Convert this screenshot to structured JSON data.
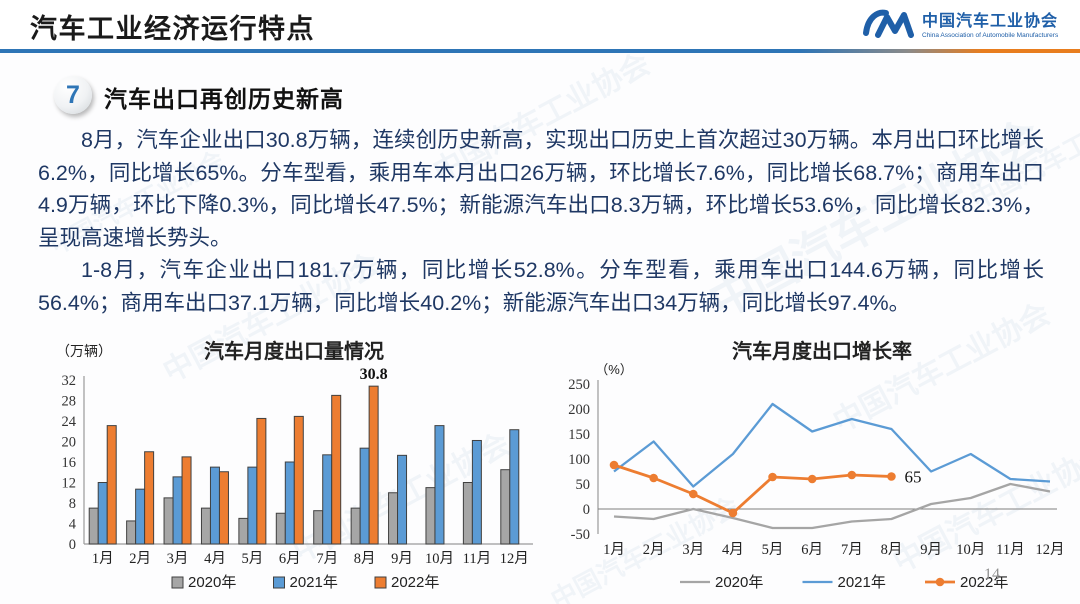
{
  "header": {
    "title": "汽车工业经济运行特点",
    "logo": {
      "org_cn": "中国汽车工业协会",
      "org_en": "China Association of Automobile Manufacturers"
    }
  },
  "section": {
    "number": "7",
    "heading": "汽车出口再创历史新高"
  },
  "paragraphs": [
    "8月，汽车企业出口30.8万辆，连续创历史新高，实现出口历史上首次超过30万辆。本月出口环比增长6.2%，同比增长65%。分车型看，乘用车本月出口26万辆，环比增长7.6%，同比增长68.7%；商用车出口4.9万辆，环比下降0.3%，同比增长47.5%；新能源汽车出口8.3万辆，环比增长53.6%，同比增长82.3%，呈现高速增长势头。",
    "1-8月，汽车企业出口181.7万辆，同比增长52.8%。分车型看，乘用车出口144.6万辆，同比增长56.4%；商用车出口37.1万辆，同比增长40.2%；新能源汽车出口34万辆，同比增长97.4%。"
  ],
  "watermark_text": "中国汽车工业协会",
  "page_number": "14",
  "colors": {
    "accent_blue": "#2E75B6",
    "body_text": "#1F3864",
    "series_2020": "#A6A6A6",
    "series_2021": "#5B9BD5",
    "series_2022": "#ED7D31",
    "bar_outline": "#404040",
    "axis": "#9a9a9a"
  },
  "chart_data": [
    {
      "type": "bar",
      "title": "汽车月度出口量情况",
      "unit_label": "（万辆）",
      "categories": [
        "1月",
        "2月",
        "3月",
        "4月",
        "5月",
        "6月",
        "7月",
        "8月",
        "9月",
        "10月",
        "11月",
        "12月"
      ],
      "series": [
        {
          "name": "2020年",
          "color": "#A6A6A6",
          "values": [
            7,
            4.5,
            9,
            7,
            5,
            6,
            6.5,
            7,
            10,
            11,
            12,
            14.5
          ]
        },
        {
          "name": "2021年",
          "color": "#5B9BD5",
          "values": [
            12,
            10.7,
            13.1,
            15,
            15,
            16,
            17.4,
            18.7,
            17.3,
            23.1,
            20.2,
            22.3
          ]
        },
        {
          "name": "2022年",
          "color": "#ED7D31",
          "values": [
            23.1,
            18,
            17,
            14.1,
            24.5,
            24.9,
            29,
            30.8,
            null,
            null,
            null,
            null
          ]
        }
      ],
      "ylim": [
        0,
        32
      ],
      "ytick_step": 4,
      "grid": false,
      "legend_position": "bottom",
      "annotation": {
        "text": "30.8",
        "series_index": 2,
        "category_index": 7
      }
    },
    {
      "type": "line",
      "title": "汽车月度出口增长率",
      "unit_label": "（%）",
      "categories": [
        "1月",
        "2月",
        "3月",
        "4月",
        "5月",
        "6月",
        "7月",
        "8月",
        "9月",
        "10月",
        "11月",
        "12月"
      ],
      "series": [
        {
          "name": "2020年",
          "color": "#A5A5A5",
          "marker": false,
          "values": [
            -15,
            -20,
            0,
            -18,
            -38,
            -38,
            -25,
            -20,
            10,
            22,
            50,
            35
          ]
        },
        {
          "name": "2021年",
          "color": "#5B9BD5",
          "marker": false,
          "values": [
            75,
            135,
            45,
            110,
            210,
            155,
            180,
            160,
            75,
            110,
            60,
            55
          ]
        },
        {
          "name": "2022年",
          "color": "#ED7D31",
          "marker": true,
          "values": [
            88,
            62,
            30,
            -8,
            64,
            60,
            68,
            65,
            null,
            null,
            null,
            null
          ]
        }
      ],
      "ylim": [
        -50,
        250
      ],
      "ytick_step": 50,
      "grid": false,
      "legend_position": "bottom",
      "annotation": {
        "text": "65",
        "series_index": 2,
        "category_index": 7
      }
    }
  ]
}
